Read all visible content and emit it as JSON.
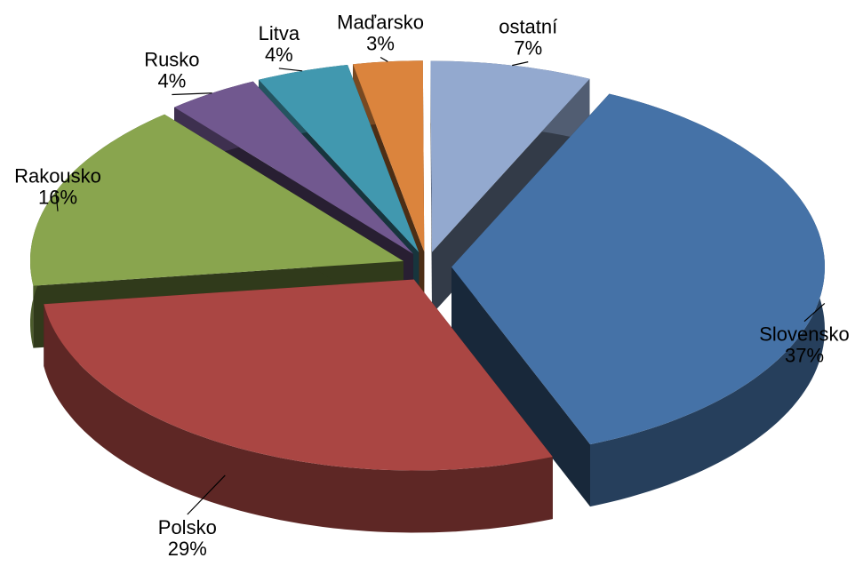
{
  "chart_data": {
    "type": "pie",
    "categories": [
      "Slovensko",
      "Polsko",
      "Rakousko",
      "Rusko",
      "Litva",
      "Maďarsko",
      "ostatní"
    ],
    "values": [
      37,
      29,
      16,
      4,
      4,
      3,
      7
    ],
    "value_labels": [
      "37%",
      "29%",
      "16%",
      "4%",
      "4%",
      "3%",
      "7%"
    ],
    "colors": [
      "#4572a7",
      "#aa4643",
      "#89a54e",
      "#71588f",
      "#4198af",
      "#db843d",
      "#93a9cf"
    ]
  }
}
